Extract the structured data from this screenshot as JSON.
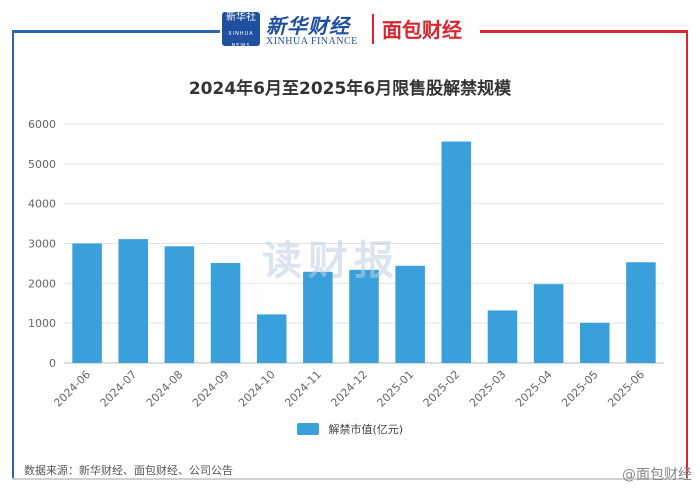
{
  "header": {
    "logo_xinhua_text": "新华社",
    "logo_xinhua_sub": "XINHUA NEWS",
    "brand_cn": "新华财经",
    "brand_en": "XINHUA FINANCE",
    "brand_mb": "面包财经"
  },
  "watermark": "读财报",
  "source_text": "数据来源：新华财经、面包财经、公司公告",
  "weibo_text": "@面包财经",
  "colors": {
    "bar": "#3aa0dc",
    "grid": "#e3e3e3",
    "frame_left": "#2e63b8",
    "frame_right": "#d9262c"
  },
  "chart_data": {
    "type": "bar",
    "title": "2024年6月至2025年6月限售股解禁规模",
    "categories": [
      "2024-06",
      "2024-07",
      "2024-08",
      "2024-09",
      "2024-10",
      "2024-11",
      "2024-12",
      "2025-01",
      "2025-02",
      "2025-03",
      "2025-04",
      "2025-05",
      "2025-06"
    ],
    "series": [
      {
        "name": "解禁市值(亿元)",
        "values": [
          3000,
          3110,
          2930,
          2510,
          1220,
          2290,
          2340,
          2440,
          5560,
          1320,
          1980,
          1010,
          2530
        ]
      }
    ],
    "y_ticks": [
      0,
      1000,
      2000,
      3000,
      4000,
      5000,
      6000
    ],
    "ylim": [
      0,
      6000
    ],
    "grid": true,
    "legend_position": "bottom"
  }
}
